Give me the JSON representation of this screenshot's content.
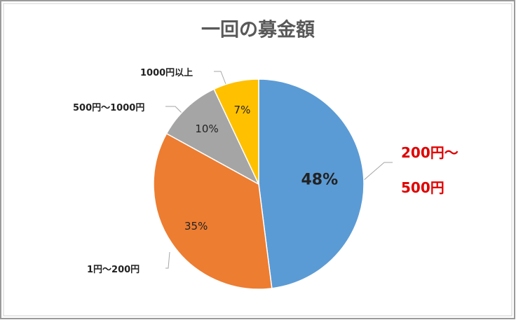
{
  "chart_data": {
    "type": "pie",
    "title": "一回の募金額",
    "categories": [
      "200円～500円",
      "1円～200円",
      "500円～1000円",
      "1000円以上"
    ],
    "values": [
      48,
      35,
      10,
      7
    ],
    "value_labels": [
      "48%",
      "35%",
      "10%",
      "7%"
    ],
    "colors": [
      "#5b9bd5",
      "#ed7d31",
      "#a5a5a5",
      "#ffc000"
    ]
  }
}
